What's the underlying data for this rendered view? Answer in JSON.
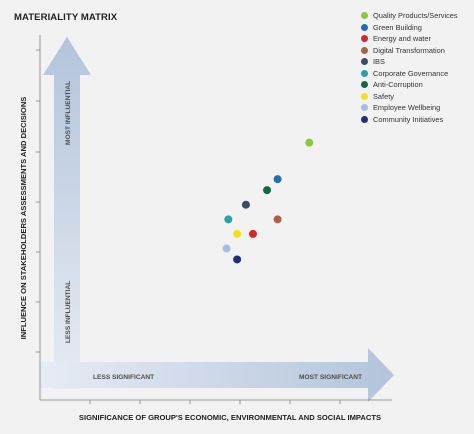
{
  "chart_data": {
    "type": "scatter",
    "title": "MATERIALITY MATRIX",
    "xlabel": "SIGNIFICANCE OF GROUP'S ECONOMIC, ENVIRONMENTAL AND SOCIAL IMPACTS",
    "ylabel": "INFLUENCE ON STAKEHOLDERS ASSESSMENTS AND DECISIONS",
    "xlim": [
      0,
      1
    ],
    "ylim": [
      0,
      1
    ],
    "x_axis_annotations": {
      "low": "LESS SIGNIFICANT",
      "high": "MOST SIGNIFICANT"
    },
    "y_axis_annotations": {
      "low": "LESS INFLUENTIAL",
      "high": "MOST INFLUENTIAL"
    },
    "grid": false,
    "legend_position": "top-right",
    "series": [
      {
        "name": "Quality Products/Services",
        "color": "#8dc63f",
        "x": 0.765,
        "y": 0.705
      },
      {
        "name": "Green Building",
        "color": "#1f6fb5",
        "x": 0.675,
        "y": 0.605
      },
      {
        "name": "Energy and water",
        "color": "#d7262b",
        "x": 0.605,
        "y": 0.455
      },
      {
        "name": "Digital Transformation",
        "color": "#a9604b",
        "x": 0.675,
        "y": 0.495
      },
      {
        "name": "IBS",
        "color": "#3c4a63",
        "x": 0.585,
        "y": 0.535
      },
      {
        "name": "Corporate Governance",
        "color": "#26a4a4",
        "x": 0.535,
        "y": 0.495
      },
      {
        "name": "Anti-Corruption",
        "color": "#0f6b3f",
        "x": 0.645,
        "y": 0.575
      },
      {
        "name": "Safety",
        "color": "#f5e11a",
        "x": 0.56,
        "y": 0.455
      },
      {
        "name": "Employee Wellbeing",
        "color": "#a6bde8",
        "x": 0.53,
        "y": 0.415
      },
      {
        "name": "Community Initiatives",
        "color": "#1f2e78",
        "x": 0.56,
        "y": 0.385
      }
    ]
  }
}
